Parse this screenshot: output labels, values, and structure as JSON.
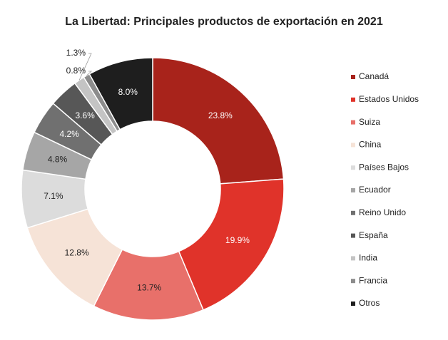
{
  "chart_data": {
    "type": "donut",
    "title": "La Libertad: Principales productos de exportación en 2021",
    "categories": [
      "Canadá",
      "Estados Unidos",
      "Suiza",
      "China",
      "Países Bajos",
      "Ecuador",
      "Reino Unido",
      "España",
      "India",
      "Francia",
      "Otros"
    ],
    "values": [
      23.8,
      19.9,
      13.7,
      12.8,
      7.1,
      4.8,
      4.2,
      3.6,
      1.3,
      0.8,
      8.0
    ],
    "value_labels": [
      "23.8%",
      "19.9%",
      "13.7%",
      "12.8%",
      "7.1%",
      "4.8%",
      "4.2%",
      "3.6%",
      "1.3%",
      "0.8%",
      "8.0%"
    ],
    "colors": [
      "#a8231b",
      "#e0332a",
      "#e8706a",
      "#f6e3d7",
      "#dcdcdc",
      "#a6a6a6",
      "#707070",
      "#575757",
      "#c4c4c4",
      "#8c8c8c",
      "#1e1e1e"
    ],
    "legend": "right"
  }
}
